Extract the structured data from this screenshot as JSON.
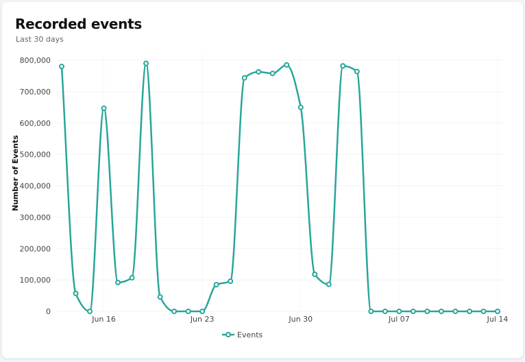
{
  "card": {
    "title": "Recorded events",
    "subtitle": "Last 30 days"
  },
  "chart_data": {
    "type": "line",
    "title": "Recorded events",
    "subtitle": "Last 30 days",
    "xlabel": "",
    "ylabel": "Number of Events",
    "x": [
      "2024-06-13",
      "2024-06-14",
      "2024-06-15",
      "2024-06-16",
      "2024-06-17",
      "2024-06-18",
      "2024-06-19",
      "2024-06-20",
      "2024-06-21",
      "2024-06-22",
      "2024-06-23",
      "2024-06-24",
      "2024-06-25",
      "2024-06-26",
      "2024-06-27",
      "2024-06-28",
      "2024-06-29",
      "2024-06-30",
      "2024-07-01",
      "2024-07-02",
      "2024-07-03",
      "2024-07-04",
      "2024-07-05",
      "2024-07-06",
      "2024-07-07",
      "2024-07-08",
      "2024-07-09",
      "2024-07-10",
      "2024-07-11",
      "2024-07-12",
      "2024-07-13",
      "2024-07-14"
    ],
    "series": [
      {
        "name": "Events",
        "color": "#26a69a",
        "values": [
          780000,
          57000,
          0,
          647000,
          92000,
          107000,
          790000,
          46000,
          0,
          0,
          0,
          85000,
          96000,
          744000,
          763000,
          758000,
          785000,
          650000,
          118000,
          86000,
          782000,
          764000,
          0,
          0,
          0,
          0,
          0,
          0,
          0,
          0,
          0,
          0
        ]
      }
    ],
    "x_ticks": [
      "Jun 16",
      "Jun 23",
      "Jun 30",
      "Jul 07",
      "Jul 14"
    ],
    "y_ticks": [
      "0",
      "100,000",
      "200,000",
      "300,000",
      "400,000",
      "500,000",
      "600,000",
      "700,000",
      "800,000"
    ],
    "ylim": [
      0,
      800000
    ],
    "grid": true,
    "legend": "bottom"
  }
}
